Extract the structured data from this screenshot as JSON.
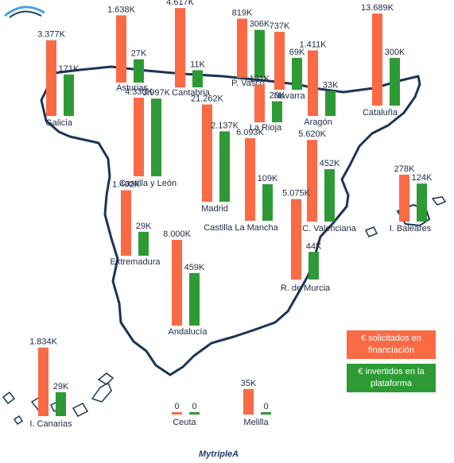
{
  "colors": {
    "requested": "#fa6a45",
    "invested": "#2e9a36",
    "map_outline": "#1c3557"
  },
  "legend": {
    "requested": "€ solicitados en financiación",
    "invested": "€ invertidos en la plataforma"
  },
  "logo": {
    "text": "MytripleA"
  },
  "chart_data": {
    "type": "bar",
    "title": "",
    "series_names": [
      "€ solicitados en financiación",
      "€ invertidos en la plataforma"
    ],
    "regions": [
      {
        "name": "Galicia",
        "requested": 3377,
        "invested": 171,
        "requested_label": "3.377K",
        "invested_label": "171K"
      },
      {
        "name": "Asturias",
        "requested": 1638,
        "invested": 27,
        "requested_label": "1.638K",
        "invested_label": "27K"
      },
      {
        "name": "Cantabria",
        "requested": 4617,
        "invested": 11,
        "requested_label": "4.617K",
        "invested_label": "11K"
      },
      {
        "name": "P. Vasco",
        "requested": 819,
        "invested": 306,
        "requested_label": "819K",
        "invested_label": "306K"
      },
      {
        "name": "Navarra",
        "requested": 737,
        "invested": 69,
        "requested_label": "737K",
        "invested_label": "69K"
      },
      {
        "name": "Aragón",
        "requested": 1411,
        "invested": 33,
        "requested_label": "1.411K",
        "invested_label": "33K"
      },
      {
        "name": "Cataluña",
        "requested": 13689,
        "invested": 300,
        "requested_label": "13.689K",
        "invested_label": "300K"
      },
      {
        "name": "Castilla y León",
        "requested": 4330,
        "invested": 3997,
        "requested_label": "4.330K",
        "invested_label": "3.997K"
      },
      {
        "name": "La Rioja",
        "requested": 121,
        "invested": 20,
        "requested_label": "121K",
        "invested_label": "20K"
      },
      {
        "name": "Madrid",
        "requested": 21262,
        "invested": 2137,
        "requested_label": "21.262K",
        "invested_label": "2.137K"
      },
      {
        "name": "Castilla La Mancha",
        "requested": 6093,
        "invested": 109,
        "requested_label": "6.093K",
        "invested_label": "109K"
      },
      {
        "name": "C. Valenciana",
        "requested": 5620,
        "invested": 452,
        "requested_label": "5.620K",
        "invested_label": "452K"
      },
      {
        "name": "I. Baleares",
        "requested": 278,
        "invested": 124,
        "requested_label": "278K",
        "invested_label": "124K"
      },
      {
        "name": "Extremadura",
        "requested": 1402,
        "invested": 29,
        "requested_label": "1.402K",
        "invested_label": "29K"
      },
      {
        "name": "Andalucía",
        "requested": 8000,
        "invested": 459,
        "requested_label": "8.000K",
        "invested_label": "459K"
      },
      {
        "name": "R. de Murcia",
        "requested": 5075,
        "invested": 44,
        "requested_label": "5.075K",
        "invested_label": "44K"
      },
      {
        "name": "I. Canarias",
        "requested": 1834,
        "invested": 29,
        "requested_label": "1.834K",
        "invested_label": "29K"
      },
      {
        "name": "Ceuta",
        "requested": 0,
        "invested": 0,
        "requested_label": "0",
        "invested_label": "0"
      },
      {
        "name": "Melilla",
        "requested": 35,
        "invested": 0,
        "requested_label": "35K",
        "invested_label": "0"
      }
    ]
  }
}
